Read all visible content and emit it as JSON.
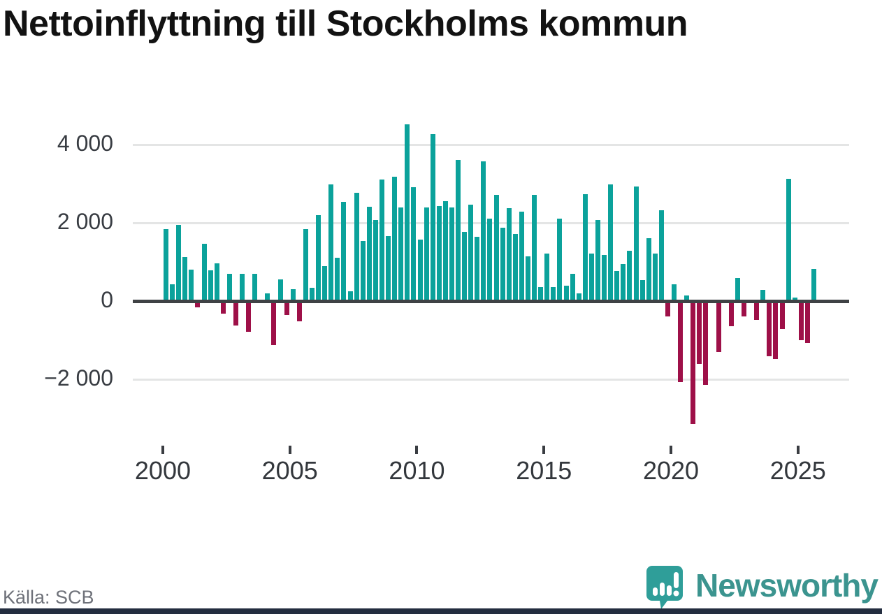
{
  "title": "Nettoinflyttning till Stockholms kommun",
  "source": "Källa: SCB",
  "branding": {
    "logo_text": "Newsworthy",
    "logo_icon": "speech-bubble-bar-chart-icon"
  },
  "colors": {
    "positive_bar": "#0ba29b",
    "negative_bar": "#9e1048",
    "gridline": "#e4e5e5",
    "zero_line": "#3f4245",
    "title_text": "#121212",
    "axis_text": "#383c42",
    "source_text": "#6e7179",
    "brand_teal": "#3b948f",
    "bottom_strip": "#232d3f",
    "background": "#ffffff"
  },
  "chart_data": {
    "type": "bar",
    "title": "Nettoinflyttning till Stockholms kommun",
    "frequency": "quarterly",
    "start_period": "2000 Q1",
    "end_period": "2025 Q3",
    "xlabel": "",
    "ylabel": "",
    "ylim": [
      -3400,
      4800
    ],
    "grid": "horizontal",
    "legend": "none",
    "yticks": [
      {
        "label": "4 000",
        "value": 4000
      },
      {
        "label": "2 000",
        "value": 2000
      },
      {
        "label": "0",
        "value": 0
      },
      {
        "label": "−2 000",
        "value": -2000
      }
    ],
    "xticks": [
      {
        "label": "2000",
        "year": 2000
      },
      {
        "label": "2005",
        "year": 2005
      },
      {
        "label": "2010",
        "year": 2010
      },
      {
        "label": "2015",
        "year": 2015
      },
      {
        "label": "2020",
        "year": 2020
      },
      {
        "label": "2025",
        "year": 2025
      }
    ],
    "start_year": 2000,
    "periods_per_year": 4,
    "values": [
      1850,
      440,
      1950,
      1140,
      820,
      -150,
      1470,
      800,
      980,
      -320,
      710,
      -620,
      710,
      -780,
      710,
      0,
      210,
      -1120,
      570,
      -340,
      310,
      -500,
      1850,
      340,
      2200,
      900,
      3000,
      1110,
      2550,
      260,
      2770,
      1550,
      2420,
      2080,
      3120,
      1670,
      3190,
      2400,
      4530,
      2920,
      1580,
      2400,
      4280,
      2440,
      2560,
      2400,
      3620,
      1770,
      2470,
      1650,
      3580,
      2110,
      2720,
      1880,
      2380,
      1720,
      2290,
      1160,
      2720,
      360,
      1230,
      360,
      2110,
      410,
      700,
      200,
      2740,
      1220,
      2080,
      1180,
      2990,
      770,
      950,
      1290,
      2940,
      540,
      1610,
      1220,
      2330,
      -380,
      430,
      -2060,
      150,
      -3130,
      -1590,
      -2130,
      0,
      -1300,
      0,
      -630,
      590,
      -380,
      0,
      -480,
      300,
      -1400,
      -1480,
      -700,
      3140,
      90,
      -990,
      -1070,
      830
    ]
  }
}
